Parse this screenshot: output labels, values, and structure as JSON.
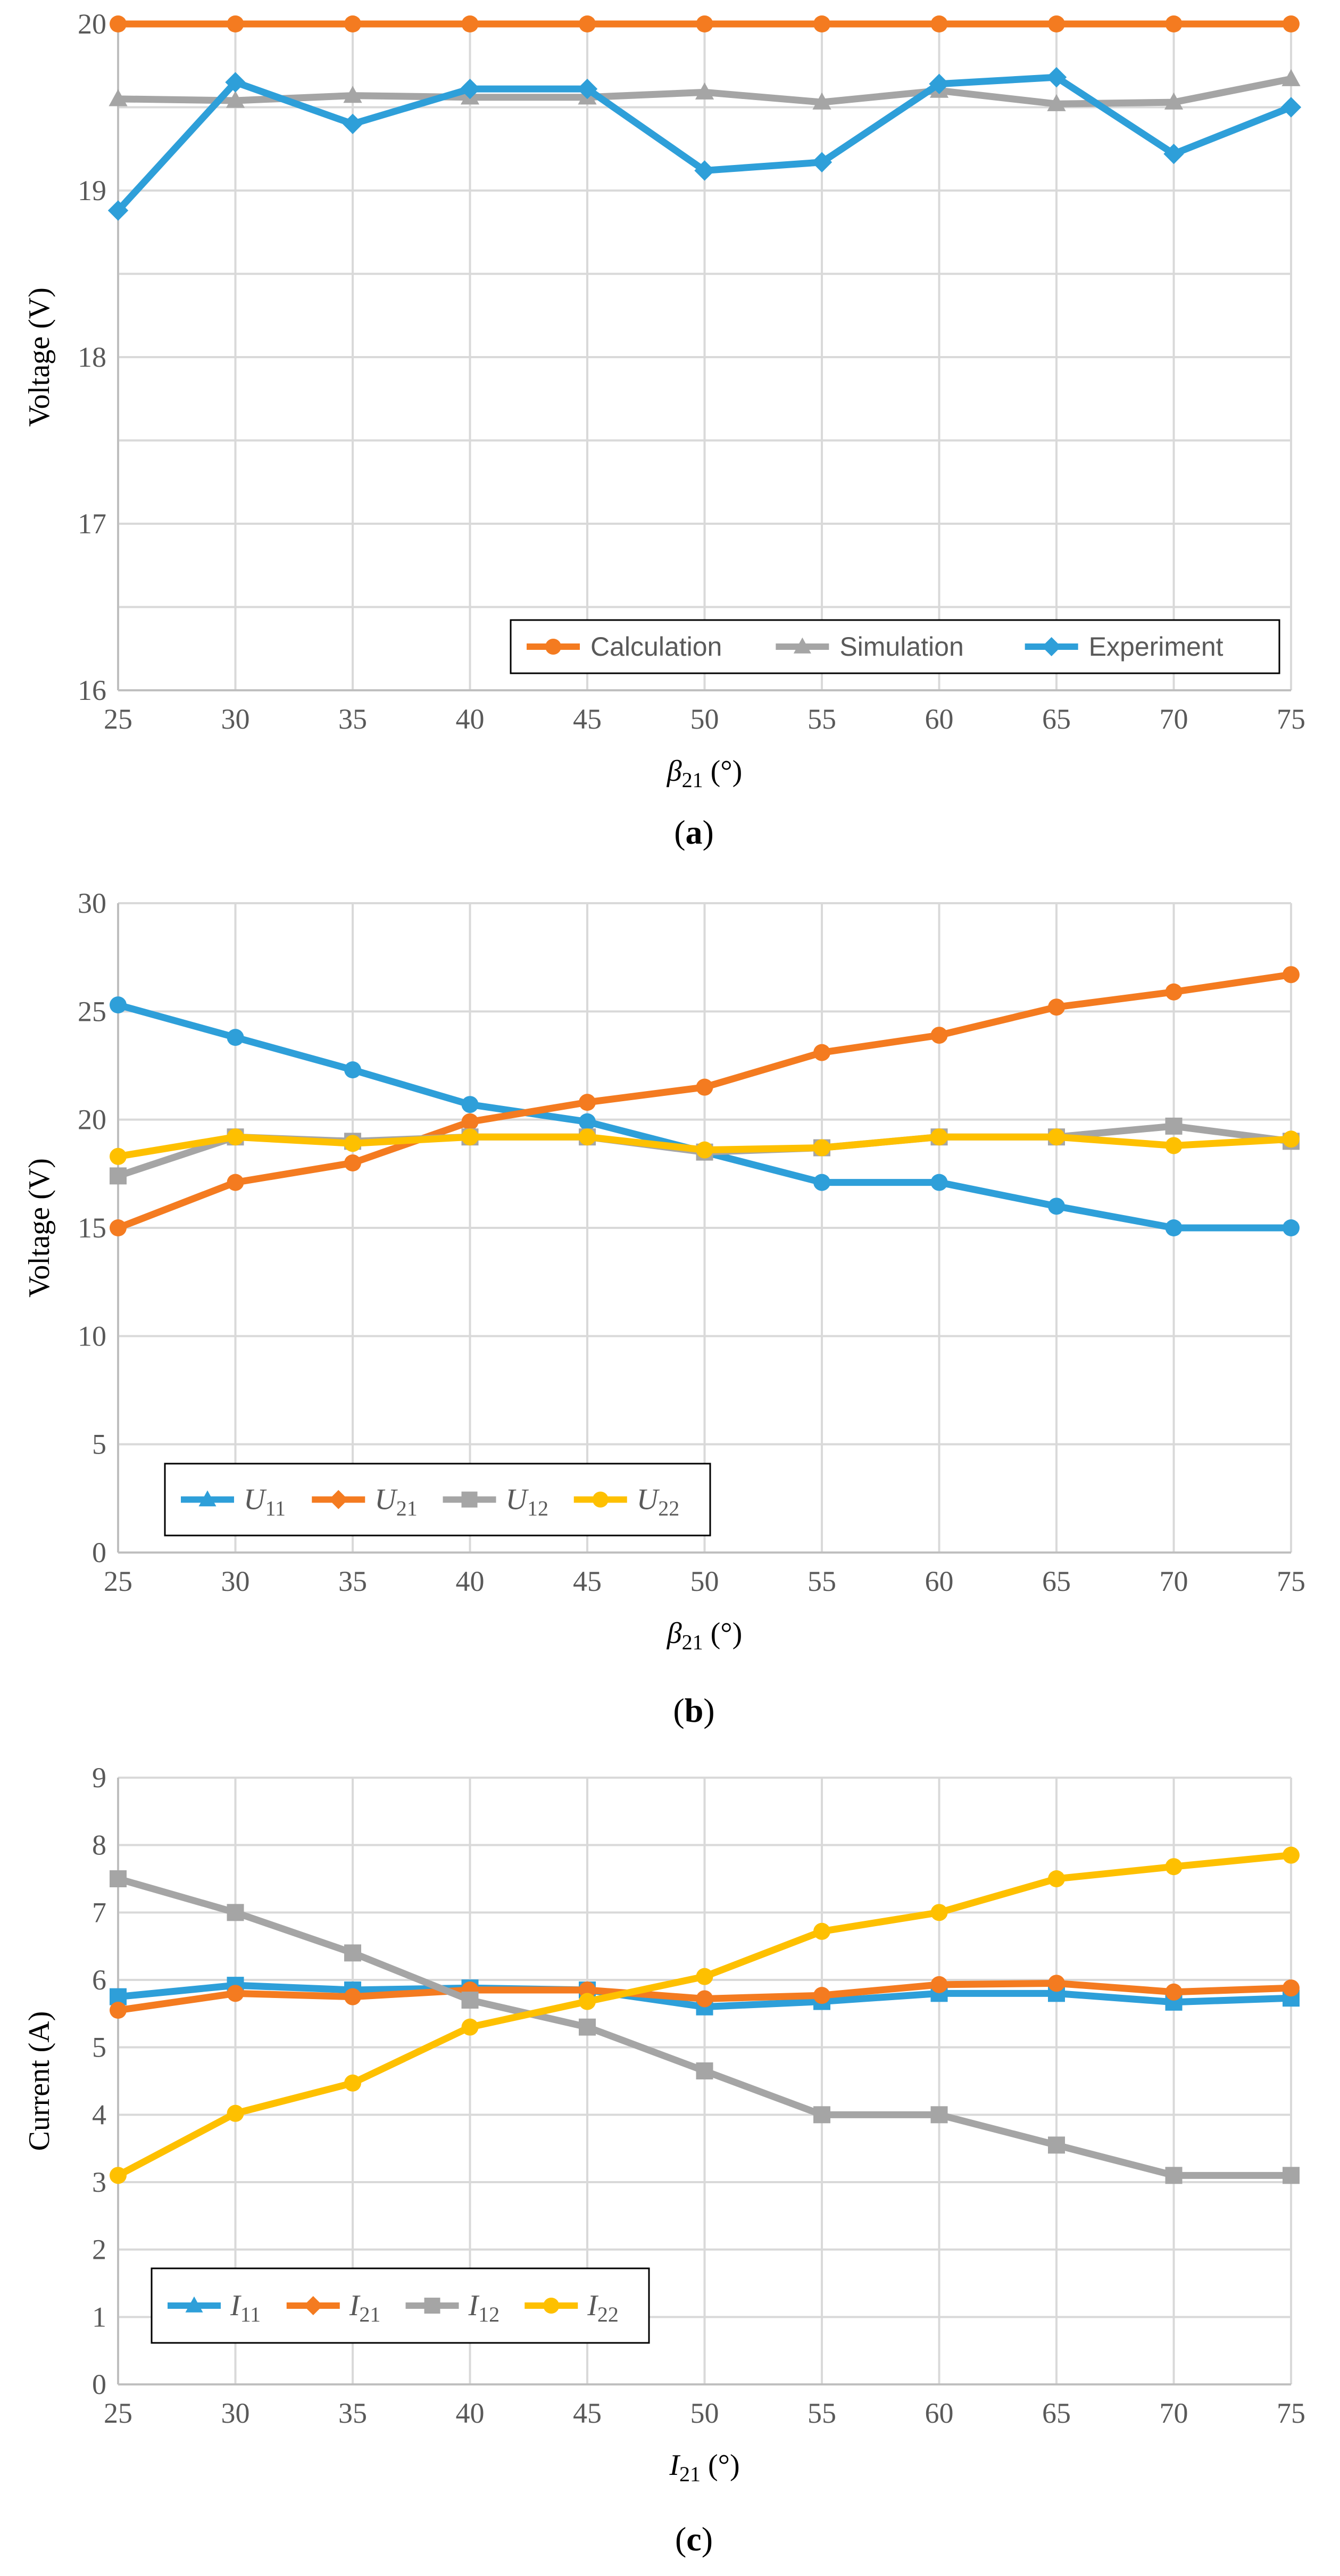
{
  "colors": {
    "blue": "#2e9fd9",
    "orange": "#f47b20",
    "gray": "#a5a5a5",
    "yellow": "#fec000",
    "grid": "#d9d9d9",
    "axis": "#bfbfbf"
  },
  "chart_data": [
    {
      "id": "a",
      "type": "line",
      "caption": "(a)",
      "ylabel": "Voltage (V)",
      "xlabel_main": "β",
      "xlabel_sub": "21",
      "xlabel_unit": " (°)",
      "ylim": [
        16,
        20
      ],
      "ygrid_step": 0.5,
      "yticks": [
        16,
        17,
        18,
        19,
        20
      ],
      "x": [
        25,
        30,
        35,
        40,
        45,
        50,
        55,
        60,
        65,
        70,
        75
      ],
      "series": [
        {
          "name": "Calculation",
          "color": "#f47b20",
          "marker": "circle",
          "values": [
            20,
            20,
            20,
            20,
            20,
            20,
            20,
            20,
            20,
            20,
            20
          ]
        },
        {
          "name": "Simulation",
          "color": "#a5a5a5",
          "marker": "triangle",
          "values": [
            19.55,
            19.54,
            19.57,
            19.56,
            19.56,
            19.59,
            19.53,
            19.6,
            19.52,
            19.53,
            19.67
          ]
        },
        {
          "name": "Experiment",
          "color": "#2e9fd9",
          "marker": "diamond",
          "values": [
            18.88,
            19.65,
            19.4,
            19.61,
            19.61,
            19.12,
            19.17,
            19.64,
            19.68,
            19.22,
            19.5
          ]
        }
      ],
      "legend": [
        {
          "label": "Calculation",
          "color": "#f47b20",
          "marker": "circle"
        },
        {
          "label": "Simulation",
          "color": "#a5a5a5",
          "marker": "triangle"
        },
        {
          "label": "Experiment",
          "color": "#2e9fd9",
          "marker": "diamond"
        }
      ],
      "legend_position": "bottom-right"
    },
    {
      "id": "b",
      "type": "line",
      "caption": "(b)",
      "ylabel": "Voltage (V)",
      "xlabel_main": "β",
      "xlabel_sub": "21",
      "xlabel_unit": " (°)",
      "ylim": [
        0,
        30
      ],
      "ygrid_step": 5,
      "yticks": [
        0,
        5,
        10,
        15,
        20,
        25,
        30
      ],
      "x": [
        25,
        30,
        35,
        40,
        45,
        50,
        55,
        60,
        65,
        70,
        75
      ],
      "series": [
        {
          "name": "U11",
          "color": "#2e9fd9",
          "marker": "circle",
          "values": [
            25.3,
            23.8,
            22.3,
            20.7,
            19.9,
            18.5,
            17.1,
            17.1,
            16.0,
            15.0,
            15.0
          ]
        },
        {
          "name": "U21",
          "color": "#f47b20",
          "marker": "circle",
          "values": [
            15.0,
            17.1,
            18.0,
            19.9,
            20.8,
            21.5,
            23.1,
            23.9,
            25.2,
            25.9,
            26.7
          ]
        },
        {
          "name": "U12",
          "color": "#a5a5a5",
          "marker": "square",
          "values": [
            17.4,
            19.2,
            19.0,
            19.2,
            19.2,
            18.5,
            18.7,
            19.2,
            19.2,
            19.7,
            19.0
          ]
        },
        {
          "name": "U22",
          "color": "#fec000",
          "marker": "circle",
          "values": [
            18.3,
            19.2,
            18.9,
            19.2,
            19.2,
            18.6,
            18.7,
            19.2,
            19.2,
            18.8,
            19.1
          ]
        }
      ],
      "legend": [
        {
          "main": "U",
          "sub": "11",
          "color": "#2e9fd9",
          "marker": "triangle"
        },
        {
          "main": "U",
          "sub": "21",
          "color": "#f47b20",
          "marker": "diamond"
        },
        {
          "main": "U",
          "sub": "12",
          "color": "#a5a5a5",
          "marker": "square"
        },
        {
          "main": "U",
          "sub": "22",
          "color": "#fec000",
          "marker": "circle"
        }
      ],
      "legend_position": "bottom-left"
    },
    {
      "id": "c",
      "type": "line",
      "caption": "(c)",
      "ylabel": "Current (A)",
      "xlabel_main": "I",
      "xlabel_sub": "21",
      "xlabel_unit": " (°)",
      "ylim": [
        0,
        9
      ],
      "ygrid_step": 1,
      "yticks": [
        0,
        1,
        2,
        3,
        4,
        5,
        6,
        7,
        8,
        9
      ],
      "x": [
        25,
        30,
        35,
        40,
        45,
        50,
        55,
        60,
        65,
        70,
        75
      ],
      "series": [
        {
          "name": "I11",
          "color": "#2e9fd9",
          "marker": "square",
          "values": [
            5.75,
            5.92,
            5.85,
            5.88,
            5.85,
            5.6,
            5.68,
            5.8,
            5.8,
            5.67,
            5.73
          ]
        },
        {
          "name": "I21",
          "color": "#f47b20",
          "marker": "circle",
          "values": [
            5.55,
            5.8,
            5.75,
            5.85,
            5.85,
            5.72,
            5.77,
            5.93,
            5.95,
            5.82,
            5.88
          ]
        },
        {
          "name": "I12",
          "color": "#a5a5a5",
          "marker": "square",
          "values": [
            7.5,
            7.0,
            6.4,
            5.7,
            5.3,
            4.65,
            4.0,
            4.0,
            3.55,
            3.1,
            3.1
          ]
        },
        {
          "name": "I22",
          "color": "#fec000",
          "marker": "circle",
          "values": [
            3.1,
            4.02,
            4.47,
            5.3,
            5.68,
            6.05,
            6.72,
            7.0,
            7.5,
            7.68,
            7.85
          ]
        }
      ],
      "legend": [
        {
          "main": "I",
          "sub": "11",
          "color": "#2e9fd9",
          "marker": "triangle"
        },
        {
          "main": "I",
          "sub": "21",
          "color": "#f47b20",
          "marker": "diamond"
        },
        {
          "main": "I",
          "sub": "12",
          "color": "#a5a5a5",
          "marker": "square"
        },
        {
          "main": "I",
          "sub": "22",
          "color": "#fec000",
          "marker": "circle"
        }
      ],
      "legend_position": "bottom-left"
    }
  ]
}
